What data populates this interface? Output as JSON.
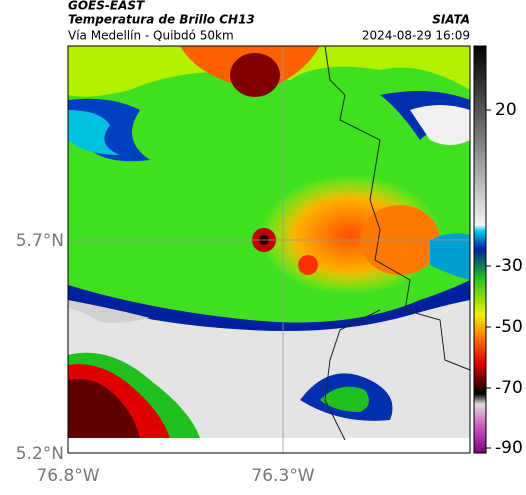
{
  "header": {
    "source": "GOES-EAST",
    "title": "Temperatura de Brillo CH13",
    "subtitle": "Vía Medellín - Quibdó 50km",
    "org": "SIATA",
    "timestamp": "2024-08-29 16:09"
  },
  "axes": {
    "lat_labels": [
      "5.7°N",
      "5.2°N"
    ],
    "lon_labels": [
      "76.8°W",
      "76.3°W"
    ]
  },
  "colorbar": {
    "ticks": [
      20,
      -30,
      -50,
      -70,
      -90
    ]
  }
}
